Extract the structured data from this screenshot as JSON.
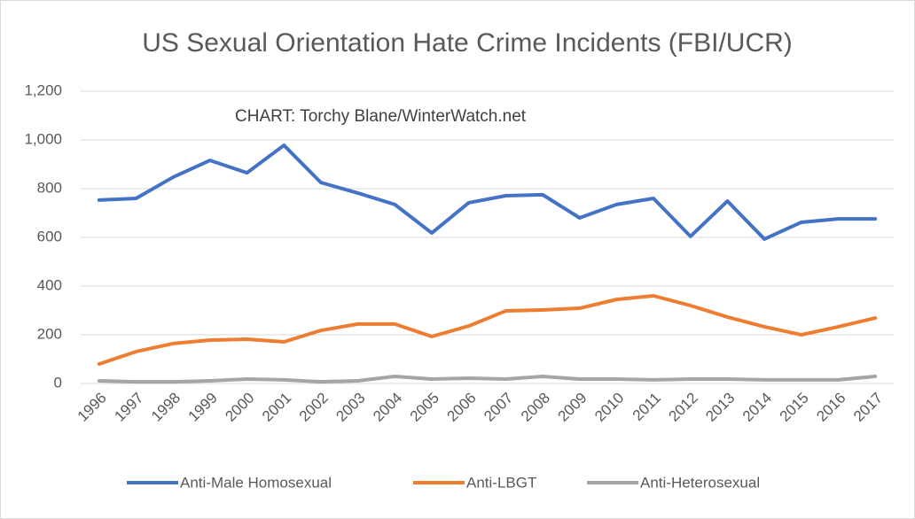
{
  "chart_data": {
    "type": "line",
    "title": "US Sexual Orientation Hate Crime Incidents (FBI/UCR)",
    "annotation": "CHART: Torchy Blane/WinterWatch.net",
    "categories": [
      "1996",
      "1997",
      "1998",
      "1999",
      "2000",
      "2001",
      "2002",
      "2003",
      "2004",
      "2005",
      "2006",
      "2007",
      "2008",
      "2009",
      "2010",
      "2011",
      "2012",
      "2013",
      "2014",
      "2015",
      "2016",
      "2017"
    ],
    "series": [
      {
        "name": "Anti-Male Homosexual",
        "color": "#4472c4",
        "values": [
          753,
          760,
          847,
          916,
          865,
          978,
          825,
          782,
          735,
          618,
          742,
          771,
          775,
          680,
          735,
          760,
          604,
          749,
          593,
          662,
          676,
          676
        ]
      },
      {
        "name": "Anti-LBGT",
        "color": "#ed7d31",
        "values": [
          80,
          131,
          164,
          178,
          182,
          171,
          218,
          244,
          244,
          193,
          236,
          298,
          302,
          309,
          345,
          360,
          320,
          273,
          233,
          200,
          233,
          269
        ]
      },
      {
        "name": "Anti-Heterosexual",
        "color": "#a5a5a5",
        "values": [
          11,
          7,
          7,
          11,
          18,
          15,
          7,
          11,
          29,
          18,
          22,
          18,
          29,
          18,
          18,
          15,
          18,
          18,
          15,
          15,
          15,
          29
        ]
      }
    ],
    "ylim": [
      0,
      1200
    ],
    "yticks": [
      0,
      200,
      400,
      600,
      800,
      {
        "value": 1000,
        "label": "1,000"
      },
      {
        "value": 1200,
        "label": "1,200"
      }
    ],
    "grid": true,
    "legend": "bottom"
  }
}
